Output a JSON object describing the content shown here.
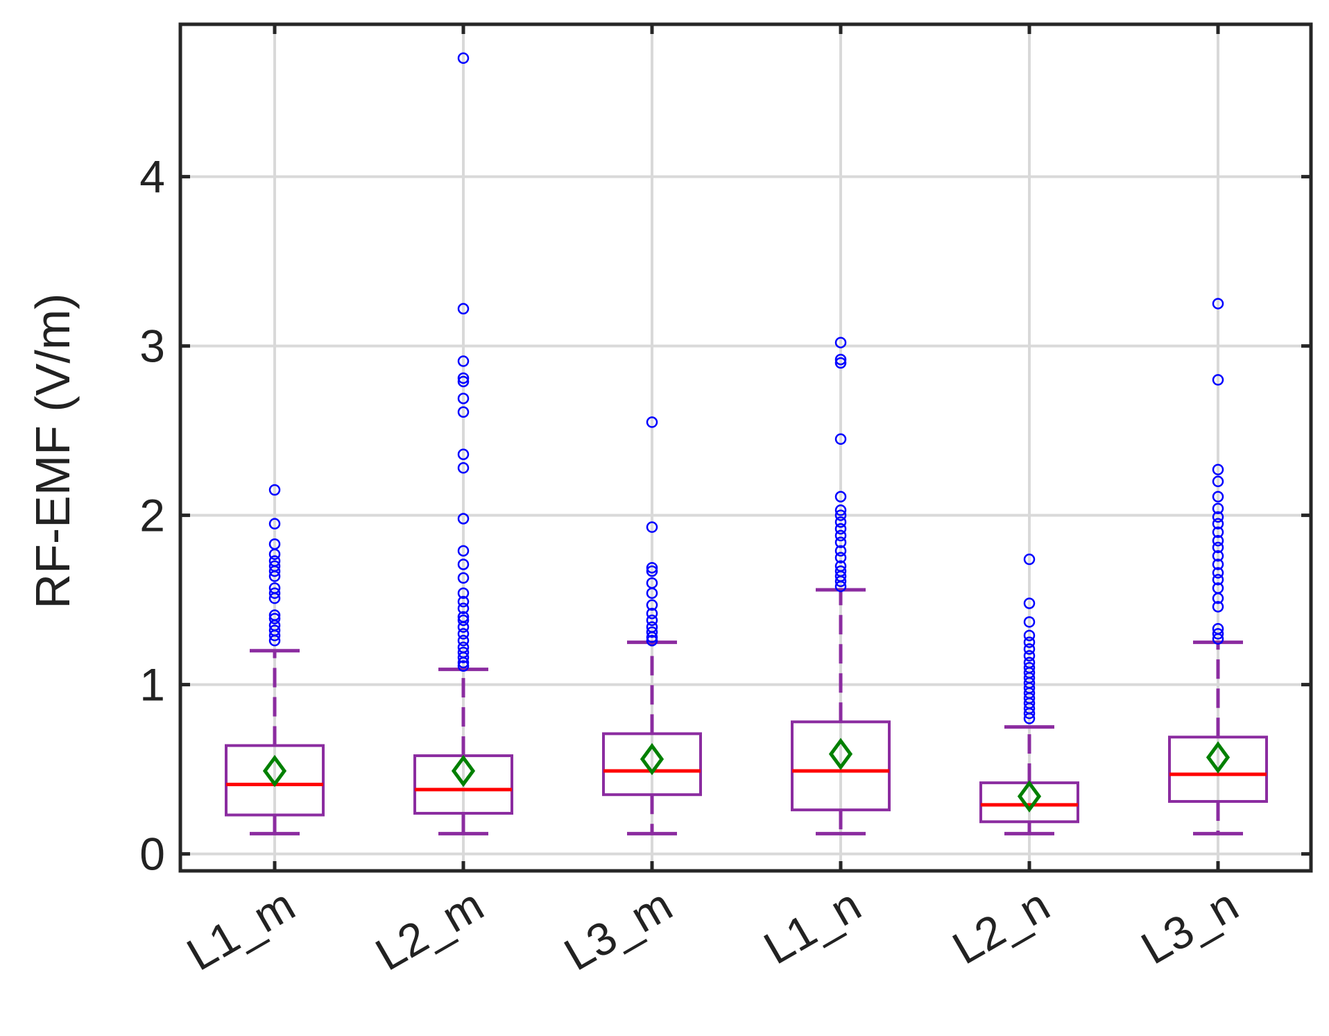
{
  "chart_data": {
    "type": "box",
    "title": "",
    "xlabel": "",
    "ylabel": "RF-EMF (V/m)",
    "ylim": [
      -0.1,
      4.9
    ],
    "yticks": [
      "0",
      "1",
      "2",
      "3",
      "4"
    ],
    "grid": true,
    "categories": [
      "L1_m",
      "L2_m",
      "L3_m",
      "L1_n",
      "L2_n",
      "L3_n"
    ],
    "boxes": [
      {
        "category": "L1_m",
        "whisker_low": 0.12,
        "q1": 0.23,
        "median": 0.41,
        "q3": 0.64,
        "whisker_high": 1.2,
        "mean": 0.49,
        "outliers": [
          1.26,
          1.29,
          1.32,
          1.35,
          1.39,
          1.41,
          1.51,
          1.54,
          1.57,
          1.64,
          1.67,
          1.7,
          1.73,
          1.77,
          1.83,
          1.95,
          2.15
        ]
      },
      {
        "category": "L2_m",
        "whisker_low": 0.12,
        "q1": 0.24,
        "median": 0.38,
        "q3": 0.58,
        "whisker_high": 1.09,
        "mean": 0.49,
        "outliers": [
          1.11,
          1.13,
          1.16,
          1.19,
          1.22,
          1.26,
          1.3,
          1.34,
          1.38,
          1.4,
          1.45,
          1.49,
          1.54,
          1.63,
          1.71,
          1.79,
          1.98,
          2.28,
          2.36,
          2.61,
          2.69,
          2.79,
          2.81,
          2.91,
          3.22,
          4.7
        ]
      },
      {
        "category": "L3_m",
        "whisker_low": 0.12,
        "q1": 0.35,
        "median": 0.49,
        "q3": 0.71,
        "whisker_high": 1.25,
        "mean": 0.56,
        "outliers": [
          1.26,
          1.28,
          1.31,
          1.34,
          1.38,
          1.42,
          1.47,
          1.54,
          1.6,
          1.67,
          1.69,
          1.93,
          2.55
        ]
      },
      {
        "category": "L1_n",
        "whisker_low": 0.12,
        "q1": 0.26,
        "median": 0.49,
        "q3": 0.78,
        "whisker_high": 1.56,
        "mean": 0.59,
        "outliers": [
          1.58,
          1.61,
          1.64,
          1.67,
          1.7,
          1.75,
          1.79,
          1.84,
          1.88,
          1.92,
          1.96,
          2.0,
          2.03,
          2.11,
          2.45,
          2.9,
          2.92,
          3.02
        ]
      },
      {
        "category": "L2_n",
        "whisker_low": 0.12,
        "q1": 0.19,
        "median": 0.29,
        "q3": 0.42,
        "whisker_high": 0.75,
        "mean": 0.34,
        "outliers": [
          0.8,
          0.83,
          0.86,
          0.89,
          0.92,
          0.95,
          0.98,
          1.01,
          1.04,
          1.07,
          1.1,
          1.13,
          1.17,
          1.21,
          1.25,
          1.29,
          1.37,
          1.48,
          1.74
        ]
      },
      {
        "category": "L3_n",
        "whisker_low": 0.12,
        "q1": 0.31,
        "median": 0.47,
        "q3": 0.69,
        "whisker_high": 1.25,
        "mean": 0.57,
        "outliers": [
          1.27,
          1.3,
          1.33,
          1.46,
          1.51,
          1.57,
          1.62,
          1.66,
          1.71,
          1.76,
          1.81,
          1.85,
          1.9,
          1.95,
          1.99,
          2.04,
          2.11,
          2.2,
          2.27,
          2.8,
          3.25
        ]
      }
    ]
  },
  "colors": {
    "box": "#8B2CA0",
    "median": "#FF0000",
    "mean_marker": "#008000",
    "outlier": "#0000FF",
    "grid": "#D9D9D9",
    "axis": "#262626",
    "text": "#222222"
  }
}
